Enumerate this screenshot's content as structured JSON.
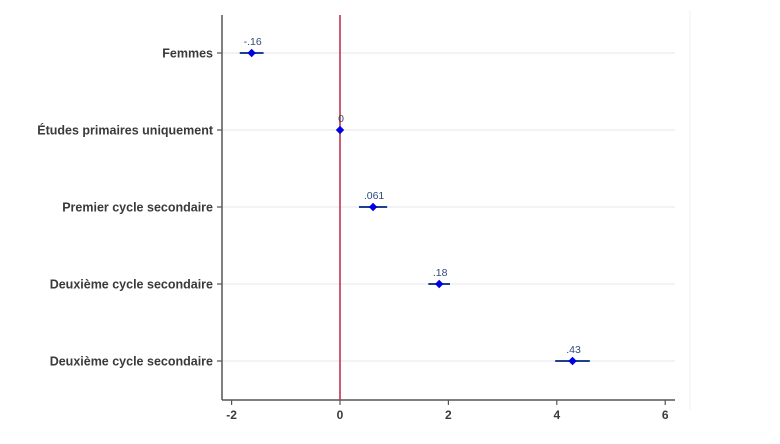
{
  "chart_data": {
    "type": "scatter",
    "orientation": "horizontal-coefficient-plot",
    "categories": [
      "Femmes",
      "Études primaires uniquement",
      "Premier cycle secondaire",
      "Deuxième cycle secondaire",
      "Deuxième cycle secondaire"
    ],
    "points": [
      {
        "category": "Femmes",
        "x": -1.63,
        "ci": [
          -1.85,
          -1.41
        ],
        "label": "-.16"
      },
      {
        "category": "Études primaires uniquement",
        "x": 0,
        "ci": [
          0,
          0
        ],
        "label": "0"
      },
      {
        "category": "Premier cycle secondaire",
        "x": 0.61,
        "ci": [
          0.35,
          0.87
        ],
        "label": ".061"
      },
      {
        "category": "Deuxième cycle secondaire",
        "x": 1.83,
        "ci": [
          1.63,
          2.03
        ],
        "label": ".18"
      },
      {
        "category": "Deuxième cycle secondaire",
        "x": 4.29,
        "ci": [
          3.97,
          4.61
        ],
        "label": ".43"
      }
    ],
    "xticks": [
      "-2",
      "0",
      "2",
      "4",
      "6"
    ],
    "xtick_values": [
      -2,
      0,
      2,
      4,
      6
    ],
    "xlim": [
      -2.2,
      6.1
    ],
    "reference_line_x": 0,
    "title": "",
    "xlabel": "",
    "ylabel": "",
    "grid": true,
    "legend": "none",
    "colors": {
      "marker": "#0000e6",
      "ci_line": "#1f3f8f",
      "reference_line": "#c0334f",
      "grid": "#ececf2",
      "axis": "#555555",
      "label_text": "#2e4a7a"
    }
  }
}
